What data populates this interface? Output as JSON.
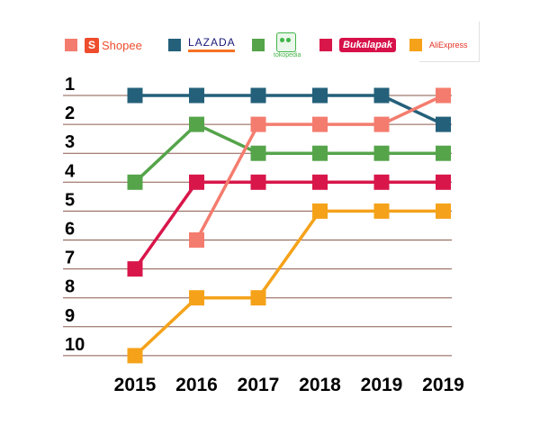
{
  "legend": {
    "shopee": {
      "name": "Shopee",
      "color": "#f47c6e",
      "icon": "shopee-bag-icon",
      "icon_glyph": "S"
    },
    "lazada": {
      "name": "LAZADA",
      "color": "#24607a",
      "icon": "lazada-logo"
    },
    "tokopedia": {
      "name": "tokopedia",
      "color": "#55a44a",
      "icon": "tokopedia-owl-icon"
    },
    "bukalapak": {
      "name": "Bukalapak",
      "color": "#d8164a",
      "icon": "bukalapak-logo"
    },
    "aliexpress": {
      "name": "AliExpress",
      "color": "#f5a21a",
      "icon": "aliexpress-logo"
    }
  },
  "chart_data": {
    "type": "line",
    "categories": [
      "2015",
      "2016",
      "2017",
      "2018",
      "2019",
      "2019"
    ],
    "y_tick_labels": [
      "1",
      "2",
      "3",
      "4",
      "5",
      "6",
      "7",
      "8",
      "9",
      "10"
    ],
    "ylim": [
      1,
      10
    ],
    "y_inverted": true,
    "grid": true,
    "legend_position": "top",
    "series": [
      {
        "name": "Lazada",
        "color": "#24607a",
        "values": [
          1,
          1,
          1,
          1,
          1,
          2
        ]
      },
      {
        "name": "Tokopedia",
        "color": "#55a44a",
        "values": [
          4,
          2,
          3,
          3,
          3,
          3
        ]
      },
      {
        "name": "Bukalapak",
        "color": "#d8164a",
        "values": [
          7,
          4,
          4,
          4,
          4,
          4
        ]
      },
      {
        "name": "Shopee",
        "color": "#f47c6e",
        "values": [
          null,
          6,
          2,
          2,
          2,
          1
        ]
      },
      {
        "name": "AliExpress",
        "color": "#f5a21a",
        "values": [
          10,
          8,
          8,
          5,
          5,
          5
        ]
      }
    ]
  }
}
